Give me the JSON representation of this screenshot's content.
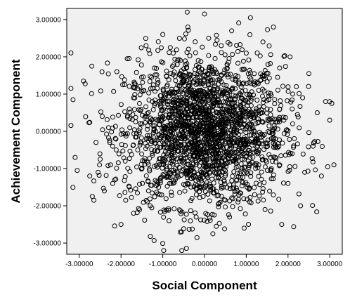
{
  "chart_data": {
    "type": "scatter",
    "title": "",
    "xlabel": "Social Component",
    "ylabel": "Achievement Component",
    "xlim": [
      -3.3,
      3.3
    ],
    "ylim": [
      -3.3,
      3.3
    ],
    "x_ticks": [
      -3,
      -2,
      -1,
      0,
      1,
      2,
      3
    ],
    "y_ticks": [
      -3,
      -2,
      -1,
      0,
      1,
      2,
      3
    ],
    "x_tick_labels": [
      "-3.00000",
      "-2.00000",
      "-1.00000",
      "0.00000",
      "1.00000",
      "2.00000",
      "3.00000"
    ],
    "y_tick_labels": [
      "-3.00000",
      "-2.00000",
      "-1.00000",
      "0.00000",
      "1.00000",
      "2.00000",
      "3.00000"
    ],
    "grid": false,
    "background_color": "#f0f0f0",
    "marker": "open-circle",
    "series": [
      {
        "x": [
          -3.15,
          -3.1,
          -3.05,
          -2.9,
          -2.75,
          -2.7,
          -2.65,
          -2.6,
          -2.55,
          -2.5,
          -2.45,
          -2.4,
          -2.3,
          -2.25,
          -2.2,
          -2.15,
          -2.1,
          -2.0,
          -1.9,
          -1.85,
          -1.8,
          -1.7,
          -1.6,
          -1.55,
          -1.5,
          -1.4,
          -1.35,
          -1.3,
          -1.25,
          -1.2,
          -1.1,
          -1.05,
          -1.0,
          -0.9,
          -0.85,
          -0.8,
          -0.75,
          -0.7,
          -0.6,
          -0.55,
          -0.5,
          -0.45,
          -0.4,
          -0.3,
          -0.25,
          -0.2,
          -0.15,
          -0.1,
          0.0,
          0.05,
          0.1,
          0.15,
          0.2,
          0.3,
          0.35,
          0.4,
          0.45,
          0.5,
          0.6,
          0.65,
          0.7,
          0.75,
          0.8,
          0.9,
          0.95,
          1.0,
          1.05,
          1.1,
          1.2,
          1.25,
          1.3,
          1.4,
          1.45,
          1.5,
          1.6,
          1.65,
          1.7,
          1.8,
          1.85,
          1.9,
          2.0,
          2.05,
          2.1,
          2.2,
          2.3,
          2.35,
          2.4,
          2.5,
          2.6,
          2.7,
          2.8,
          2.9,
          2.95,
          3.0,
          3.05,
          3.1,
          -1.5,
          -0.8,
          0.3,
          1.1,
          -0.2,
          0.9,
          -1.0,
          0.55,
          1.6,
          -1.7,
          2.1,
          -2.2,
          0.0,
          -0.5,
          0.7,
          1.3,
          -1.2,
          1.8,
          -0.35,
          0.15
        ],
        "y": [
          0.85,
          -0.7,
          -1.05,
          1.35,
          -1.2,
          1.75,
          -1.85,
          -0.3,
          -1.1,
          -0.75,
          0.4,
          -1.6,
          0.1,
          -0.9,
          -0.4,
          -1.3,
          1.6,
          -2.5,
          -0.8,
          1.95,
          0.6,
          -2.2,
          -0.5,
          1.2,
          -1.0,
          2.3,
          -0.2,
          -2.0,
          0.8,
          1.7,
          -1.5,
          0.3,
          2.6,
          -0.6,
          -2.4,
          1.0,
          2.1,
          -1.3,
          0.5,
          -2.7,
          1.4,
          -0.1,
          2.8,
          -1.8,
          0.7,
          -2.3,
          1.9,
          -0.4,
          3.15,
          -1.2,
          2.5,
          0.2,
          -2.75,
          1.1,
          -0.7,
          2.3,
          -1.5,
          0.9,
          -2.3,
          2.7,
          -0.3,
          1.5,
          -1.9,
          0.4,
          -2.6,
          2.1,
          -0.8,
          3.05,
          -1.7,
          1.3,
          -0.5,
          2.4,
          -2.1,
          0.6,
          -1.0,
          2.8,
          -0.2,
          1.7,
          -2.5,
          0.3,
          -1.4,
          2.0,
          -0.6,
          1.2,
          -2.0,
          0.9,
          -1.1,
          1.55,
          -0.4,
          0.5,
          -1.2,
          0.8,
          -0.95,
          0.3,
          0.75,
          -0.9,
          0.2,
          0.0,
          -0.3,
          0.5,
          1.0,
          -1.0,
          0.4,
          -0.6,
          -0.2,
          0.9,
          0.6,
          -1.4,
          -0.5,
          0.1,
          -0.8,
          1.1,
          0.7,
          -0.9,
          1.3,
          -1.6
        ]
      }
    ]
  }
}
